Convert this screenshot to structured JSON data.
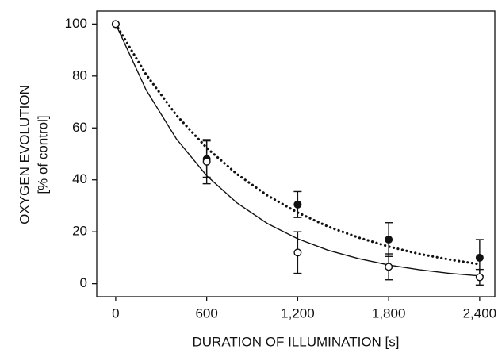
{
  "chart_data": {
    "type": "scatter",
    "x_label": "DURATION OF ILLUMINATION [s]",
    "y_label": [
      "OXYGEN EVOLUTION",
      "[% of control]"
    ],
    "xlim": [
      -125,
      2500
    ],
    "ylim": [
      -5,
      105
    ],
    "xticks": [
      0,
      600,
      {
        "value": 1200,
        "label": "1,200"
      },
      {
        "value": 1800,
        "label": "1,800"
      },
      {
        "value": 2400,
        "label": "2,400"
      }
    ],
    "yticks": [
      0,
      20,
      40,
      60,
      80,
      100
    ],
    "series": [
      {
        "marker": "filled",
        "color": "#111111",
        "x": [
          0,
          600,
          1200,
          1800,
          2400
        ],
        "values": [
          100,
          48,
          30.5,
          17,
          10
        ],
        "errors": [
          0,
          7,
          5,
          6.5,
          7
        ]
      },
      {
        "marker": "open",
        "color": "#111111",
        "x": [
          0,
          600,
          1200,
          1800,
          2400
        ],
        "values": [
          100,
          47,
          12,
          6.5,
          2.5
        ],
        "errors": [
          0,
          8.5,
          8,
          5,
          3
        ]
      }
    ],
    "lines": [
      {
        "style": "dotted",
        "color": "#111111",
        "x": [
          0,
          200,
          400,
          600,
          800,
          1000,
          1200,
          1400,
          1600,
          1800,
          2000,
          2200,
          2400
        ],
        "values": [
          100,
          80.6,
          64.9,
          52.3,
          42.2,
          34.0,
          27.4,
          22.0,
          17.8,
          14.3,
          11.5,
          9.3,
          7.5
        ]
      },
      {
        "style": "solid",
        "color": "#111111",
        "x": [
          0,
          200,
          400,
          600,
          800,
          1000,
          1200,
          1400,
          1600,
          1800,
          2000,
          2200,
          2400
        ],
        "values": [
          100,
          74.7,
          55.8,
          41.6,
          31.1,
          23.2,
          17.3,
          12.9,
          9.7,
          7.2,
          5.4,
          4.0,
          3.0
        ]
      }
    ]
  }
}
